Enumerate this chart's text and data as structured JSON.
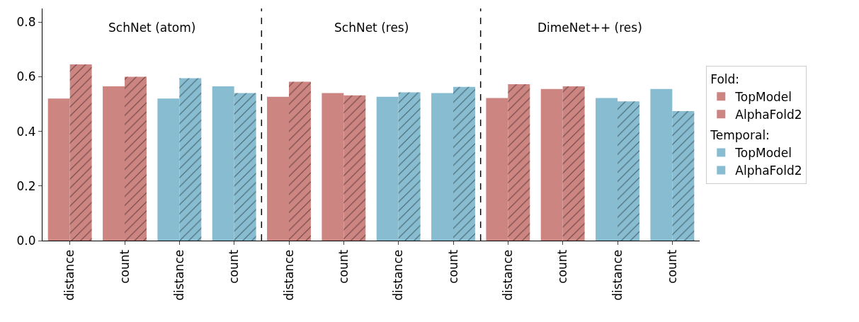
{
  "chart_data": {
    "type": "bar",
    "categories": [
      "distance",
      "count",
      "distance",
      "count",
      "distance",
      "count",
      "distance",
      "count",
      "distance",
      "count",
      "distance",
      "count"
    ],
    "series": [
      {
        "name": "Fold:",
        "values": [
          null,
          null,
          null,
          null,
          null,
          null,
          null,
          null,
          null,
          null,
          null,
          null
        ]
      },
      {
        "name": "TopModel",
        "color": "#cd8582",
        "values": [
          0.52,
          0.565,
          null,
          null,
          0.527,
          0.54,
          null,
          null,
          0.522,
          0.555,
          null,
          null
        ]
      },
      {
        "name": "AlphaFold2",
        "color": "#cd8582",
        "values": [
          0.645,
          0.6,
          null,
          null,
          0.582,
          0.532,
          null,
          null,
          0.573,
          0.565,
          null,
          null
        ]
      },
      {
        "name": "Temporal:",
        "values": [
          null,
          null,
          null,
          null,
          null,
          null,
          null,
          null,
          null,
          null,
          null,
          null
        ]
      },
      {
        "name": "TopModel",
        "color": "#88bdd1",
        "values": [
          null,
          null,
          0.52,
          0.565,
          null,
          null,
          0.527,
          0.54,
          null,
          null,
          0.522,
          0.555
        ]
      },
      {
        "name": "AlphaFold2",
        "color": "#88bdd1",
        "values": [
          null,
          null,
          0.595,
          0.54,
          null,
          null,
          0.543,
          0.563,
          null,
          null,
          0.51,
          0.474
        ]
      }
    ],
    "annotations": [
      "SchNet (atom)",
      "SchNet (res)",
      "DimeNet++ (res)"
    ],
    "ylim": [
      0,
      0.85
    ],
    "yticks": [
      {
        "value": 0,
        "label": "0.0"
      },
      {
        "value": 0.2,
        "label": "0.2"
      },
      {
        "value": 0.4,
        "label": "0.4"
      },
      {
        "value": 0.6,
        "label": "0.6"
      },
      {
        "value": 0.8,
        "label": "0.8"
      }
    ],
    "grid": false,
    "legend": "right"
  }
}
